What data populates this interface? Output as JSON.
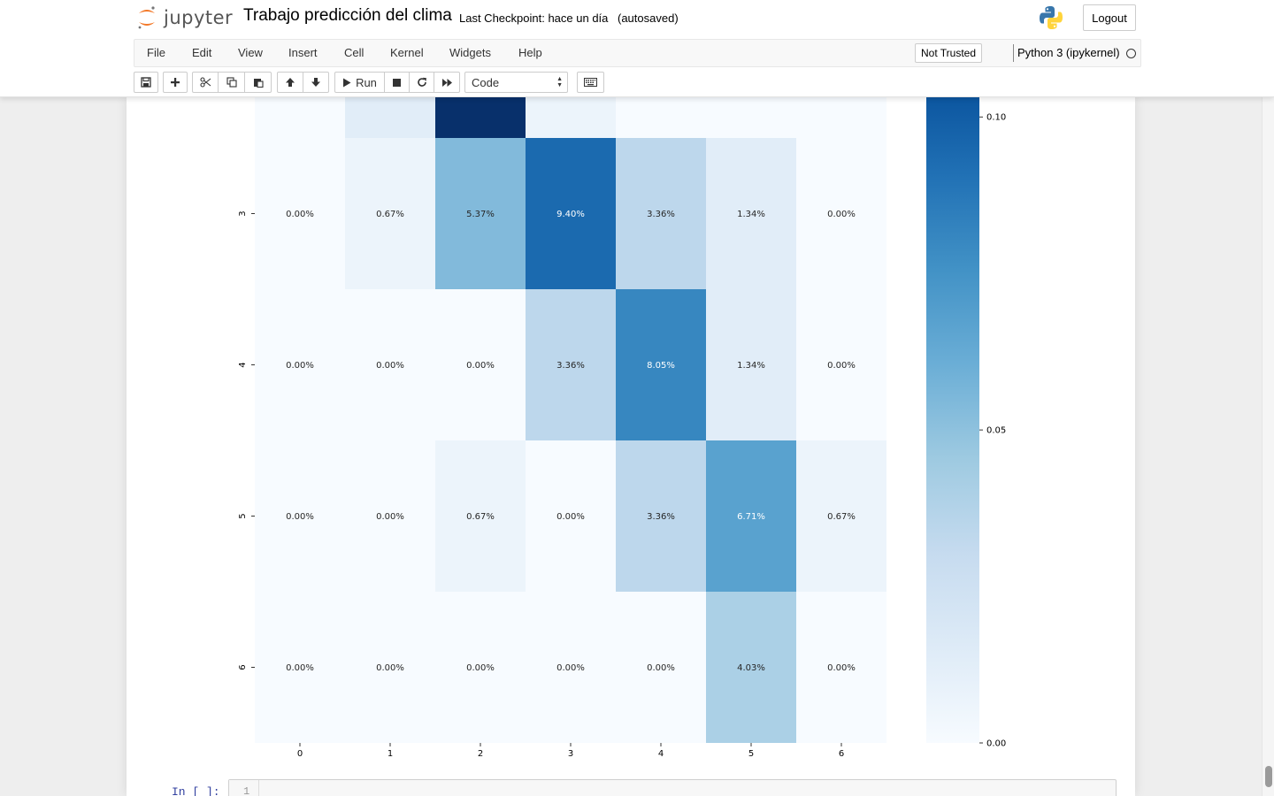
{
  "header": {
    "logo_text": "jupyter",
    "notebook_name": "Trabajo predicción del clima",
    "checkpoint": "Last Checkpoint: hace un día",
    "autosave": "(autosaved)",
    "logout_label": "Logout"
  },
  "menubar": {
    "items": [
      "File",
      "Edit",
      "View",
      "Insert",
      "Cell",
      "Kernel",
      "Widgets",
      "Help"
    ],
    "trust_label": "Not Trusted",
    "kernel_label": "Python 3 (ipykernel)"
  },
  "toolbar": {
    "run_label": "Run",
    "cell_type": "Code",
    "icons": [
      "save-icon",
      "plus-icon",
      "cut-icon",
      "copy-icon",
      "paste-icon",
      "arrow-up-icon",
      "arrow-down-icon",
      "run-icon",
      "stop-icon",
      "restart-icon",
      "fast-forward-icon",
      "keyboard-icon"
    ]
  },
  "chart_data": {
    "type": "heatmap",
    "colormap": "Blues",
    "x_tick_labels": [
      "0",
      "1",
      "2",
      "3",
      "4",
      "5",
      "6"
    ],
    "visible_rows": [
      {
        "label": "",
        "values": [
          0.0,
          0.0134,
          0.1208,
          0.0067,
          0.0,
          0.0,
          0.0
        ],
        "labels_visible": false
      },
      {
        "label": "3",
        "values": [
          0.0,
          0.0067,
          0.0537,
          0.094,
          0.0336,
          0.0134,
          0.0
        ],
        "labels": [
          "0.00%",
          "0.67%",
          "5.37%",
          "9.40%",
          "3.36%",
          "1.34%",
          "0.00%"
        ]
      },
      {
        "label": "4",
        "values": [
          0.0,
          0.0,
          0.0,
          0.0336,
          0.0805,
          0.0134,
          0.0
        ],
        "labels": [
          "0.00%",
          "0.00%",
          "0.00%",
          "3.36%",
          "8.05%",
          "1.34%",
          "0.00%"
        ]
      },
      {
        "label": "5",
        "values": [
          0.0,
          0.0,
          0.0067,
          0.0,
          0.0336,
          0.0671,
          0.0067
        ],
        "labels": [
          "0.00%",
          "0.00%",
          "0.67%",
          "0.00%",
          "3.36%",
          "6.71%",
          "0.67%"
        ]
      },
      {
        "label": "6",
        "values": [
          0.0,
          0.0,
          0.0,
          0.0,
          0.0,
          0.0403,
          0.0
        ],
        "labels": [
          "0.00%",
          "0.00%",
          "0.00%",
          "0.00%",
          "0.00%",
          "4.03%",
          "0.00%"
        ]
      }
    ],
    "vmin": 0.0,
    "vmax": 0.1208,
    "colorbar_ticks": [
      "0.00",
      "0.05",
      "0.10"
    ]
  },
  "next_cell": {
    "prompt": "In [ ]:",
    "line_number": "1"
  }
}
